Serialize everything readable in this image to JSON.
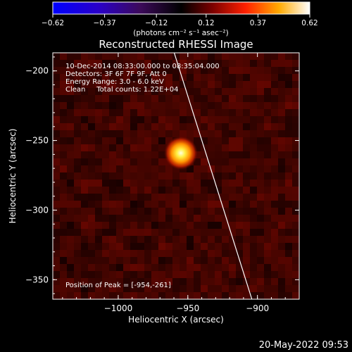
{
  "chart_data": {
    "type": "heatmap",
    "title": "Reconstructed RHESSI Image",
    "xlabel": "Heliocentric X (arcsec)",
    "ylabel": "Heliocentric Y (arcsec)",
    "xlim": [
      -1047,
      -870
    ],
    "ylim": [
      -364,
      -187
    ],
    "x_ticks": [
      {
        "value": -1000,
        "label": "−1000"
      },
      {
        "value": -950,
        "label": "−950"
      },
      {
        "value": -900,
        "label": "−900"
      }
    ],
    "y_ticks": [
      {
        "value": -200,
        "label": "−200"
      },
      {
        "value": -250,
        "label": "−250"
      },
      {
        "value": -300,
        "label": "−300"
      },
      {
        "value": -350,
        "label": "−350"
      }
    ],
    "colorbar": {
      "min": -0.62,
      "max": 0.62,
      "ticks": [
        {
          "value": -0.62,
          "label": "−0.62"
        },
        {
          "value": -0.37,
          "label": "−0.37"
        },
        {
          "value": -0.12,
          "label": "−0.12"
        },
        {
          "value": 0.12,
          "label": "0.12"
        },
        {
          "value": 0.37,
          "label": "0.37"
        },
        {
          "value": 0.62,
          "label": "0.62"
        }
      ],
      "units_label": "(photons cm⁻² s⁻¹ asec⁻²)"
    },
    "source": {
      "x": -955,
      "y": -259,
      "peak": 0.62,
      "width_arcsec": 7
    },
    "limb_line": [
      [
        -962,
        -180
      ],
      [
        -904,
        -364
      ]
    ],
    "annotations": [
      "10-Dec-2014 08:33:00.000 to 08:35:04.000",
      "Detectors: 3F 6F 7F 9F, Att 0",
      "Energy Range: 3.0 - 6.0 keV",
      "Clean     Total counts: 1.22E+04"
    ],
    "peak_label": "Position of Peak = [-954,-261]"
  },
  "footer": {
    "timestamp": "20-May-2022 09:53"
  }
}
